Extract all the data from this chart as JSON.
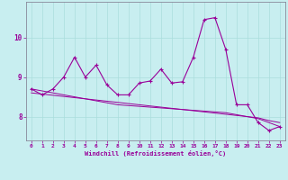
{
  "xlabel": "Windchill (Refroidissement éolien,°C)",
  "bg_color": "#c8eef0",
  "line_color": "#990099",
  "grid_color": "#aadddd",
  "x_values": [
    0,
    1,
    2,
    3,
    4,
    5,
    6,
    7,
    8,
    9,
    10,
    11,
    12,
    13,
    14,
    15,
    16,
    17,
    18,
    19,
    20,
    21,
    22,
    23
  ],
  "series1": [
    8.7,
    8.55,
    8.7,
    9.0,
    9.5,
    9.0,
    9.3,
    8.8,
    8.55,
    8.55,
    8.85,
    8.9,
    9.2,
    8.85,
    8.88,
    9.5,
    10.45,
    10.5,
    9.7,
    8.3,
    8.3,
    7.85,
    7.65,
    7.75
  ],
  "series2": [
    8.7,
    8.65,
    8.6,
    8.55,
    8.5,
    8.45,
    8.4,
    8.35,
    8.3,
    8.28,
    8.26,
    8.24,
    8.22,
    8.2,
    8.18,
    8.16,
    8.14,
    8.12,
    8.1,
    8.05,
    8.0,
    7.95,
    7.85,
    7.75
  ],
  "series3": [
    8.6,
    8.57,
    8.54,
    8.51,
    8.48,
    8.45,
    8.42,
    8.39,
    8.36,
    8.33,
    8.3,
    8.27,
    8.24,
    8.21,
    8.18,
    8.15,
    8.12,
    8.09,
    8.06,
    8.03,
    8.0,
    7.97,
    7.9,
    7.85
  ],
  "ylim_min": 7.4,
  "ylim_max": 10.9,
  "yticks": [
    8,
    9,
    10
  ],
  "xticks": [
    0,
    1,
    2,
    3,
    4,
    5,
    6,
    7,
    8,
    9,
    10,
    11,
    12,
    13,
    14,
    15,
    16,
    17,
    18,
    19,
    20,
    21,
    22,
    23
  ]
}
